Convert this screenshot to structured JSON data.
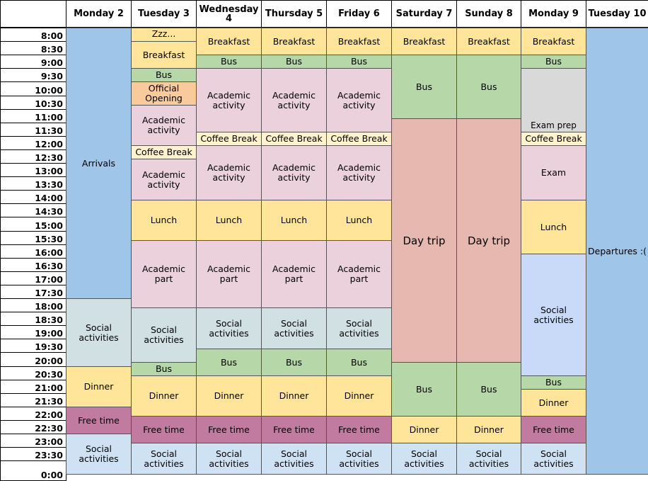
{
  "days": [
    "Monday 2",
    "Tuesday 3",
    "Wednesday 4",
    "Thursday 5",
    "Friday 6",
    "Saturday 7",
    "Sunday 8",
    "Monday 9",
    "Tuesday 10"
  ],
  "times": [
    "8:00",
    "8:30",
    "9:00",
    "9:30",
    "10:00",
    "10:30",
    "11:00",
    "11:30",
    "12:00",
    "12:30",
    "13:00",
    "13:30",
    "14:00",
    "14:30",
    "15:00",
    "15:30",
    "16:00",
    "16:30",
    "17:00",
    "17:30",
    "18:00",
    "18:30",
    "19:00",
    "19:30",
    "20:00",
    "20:30",
    "21:00",
    "21:30",
    "22:00",
    "22:30",
    "23:00",
    "23:30",
    "0:00"
  ],
  "colors": {
    "blue": "#9fc5e8",
    "lightblue": "#cfe2f3",
    "periwinkle": "#c9daf8",
    "yellow": "#ffe599",
    "green": "#b6d7a8",
    "pink": "#ead1dc",
    "orange": "#f9cb9c",
    "salmon": "#e6b8af",
    "grey": "#d9d9d9",
    "plum": "#c27ba0",
    "cream": "#fff2cc",
    "teal": "#d0e0e3"
  },
  "events": [
    {
      "day": 0,
      "start": 0,
      "end": 20,
      "label": "Arrivals",
      "color": "blue"
    },
    {
      "day": 0,
      "start": 20,
      "end": 25,
      "label": "Social activities",
      "color": "teal"
    },
    {
      "day": 0,
      "start": 25,
      "end": 28,
      "label": "Dinner",
      "color": "yellow"
    },
    {
      "day": 0,
      "start": 28,
      "end": 30,
      "label": "Free time",
      "color": "plum"
    },
    {
      "day": 0,
      "start": 30,
      "end": 33,
      "label": "Social activities",
      "color": "lightblue"
    },
    {
      "day": 1,
      "start": 0,
      "end": 1,
      "label": "Zzz...",
      "color": "yellow",
      "pos": "top"
    },
    {
      "day": 1,
      "start": 1,
      "end": 3,
      "label": "Breakfast",
      "color": "yellow"
    },
    {
      "day": 1,
      "start": 3,
      "end": 4,
      "label": "Bus",
      "color": "green"
    },
    {
      "day": 1,
      "start": 4,
      "end": 5.7,
      "label": "Official Opening",
      "color": "orange"
    },
    {
      "day": 1,
      "start": 5.7,
      "end": 8.7,
      "label": "Academic activity",
      "color": "pink"
    },
    {
      "day": 1,
      "start": 8.7,
      "end": 9.7,
      "label": "Coffee Break",
      "color": "cream"
    },
    {
      "day": 1,
      "start": 9.7,
      "end": 12.7,
      "label": "Academic activity",
      "color": "pink"
    },
    {
      "day": 1,
      "start": 12.7,
      "end": 15.7,
      "label": "Lunch",
      "color": "yellow"
    },
    {
      "day": 1,
      "start": 15.7,
      "end": 20.7,
      "label": "Academic part",
      "color": "pink"
    },
    {
      "day": 1,
      "start": 20.7,
      "end": 24.7,
      "label": "Social activities",
      "color": "teal"
    },
    {
      "day": 1,
      "start": 24.7,
      "end": 25.7,
      "label": "Bus",
      "color": "green"
    },
    {
      "day": 1,
      "start": 25.7,
      "end": 28.7,
      "label": "Dinner",
      "color": "yellow"
    },
    {
      "day": 1,
      "start": 28.7,
      "end": 30.7,
      "label": "Free time",
      "color": "plum"
    },
    {
      "day": 1,
      "start": 30.7,
      "end": 33,
      "label": "Social activities",
      "color": "lightblue"
    },
    {
      "day": 2,
      "start": 0,
      "end": 2,
      "label": "Breakfast",
      "color": "yellow"
    },
    {
      "day": 2,
      "start": 2,
      "end": 3,
      "label": "Bus",
      "color": "green"
    },
    {
      "day": 2,
      "start": 3,
      "end": 7.7,
      "label": "Academic activity",
      "color": "pink"
    },
    {
      "day": 2,
      "start": 7.7,
      "end": 8.7,
      "label": "Coffee Break",
      "color": "cream"
    },
    {
      "day": 2,
      "start": 8.7,
      "end": 12.7,
      "label": "Academic activity",
      "color": "pink"
    },
    {
      "day": 2,
      "start": 12.7,
      "end": 15.7,
      "label": "Lunch",
      "color": "yellow"
    },
    {
      "day": 2,
      "start": 15.7,
      "end": 20.7,
      "label": "Academic part",
      "color": "pink"
    },
    {
      "day": 2,
      "start": 20.7,
      "end": 23.7,
      "label": "Social activities",
      "color": "teal"
    },
    {
      "day": 2,
      "start": 23.7,
      "end": 25.7,
      "label": "Bus",
      "color": "green"
    },
    {
      "day": 2,
      "start": 25.7,
      "end": 28.7,
      "label": "Dinner",
      "color": "yellow"
    },
    {
      "day": 2,
      "start": 28.7,
      "end": 30.7,
      "label": "Free time",
      "color": "plum"
    },
    {
      "day": 2,
      "start": 30.7,
      "end": 33,
      "label": "Social activities",
      "color": "lightblue"
    },
    {
      "day": 3,
      "start": 0,
      "end": 2,
      "label": "Breakfast",
      "color": "yellow"
    },
    {
      "day": 3,
      "start": 2,
      "end": 3,
      "label": "Bus",
      "color": "green"
    },
    {
      "day": 3,
      "start": 3,
      "end": 7.7,
      "label": "Academic activity",
      "color": "pink"
    },
    {
      "day": 3,
      "start": 7.7,
      "end": 8.7,
      "label": "Coffee Break",
      "color": "cream"
    },
    {
      "day": 3,
      "start": 8.7,
      "end": 12.7,
      "label": "Academic activity",
      "color": "pink"
    },
    {
      "day": 3,
      "start": 12.7,
      "end": 15.7,
      "label": "Lunch",
      "color": "yellow"
    },
    {
      "day": 3,
      "start": 15.7,
      "end": 20.7,
      "label": "Academic part",
      "color": "pink"
    },
    {
      "day": 3,
      "start": 20.7,
      "end": 23.7,
      "label": "Social activities",
      "color": "teal"
    },
    {
      "day": 3,
      "start": 23.7,
      "end": 25.7,
      "label": "Bus",
      "color": "green"
    },
    {
      "day": 3,
      "start": 25.7,
      "end": 28.7,
      "label": "Dinner",
      "color": "yellow"
    },
    {
      "day": 3,
      "start": 28.7,
      "end": 30.7,
      "label": "Free time",
      "color": "plum"
    },
    {
      "day": 3,
      "start": 30.7,
      "end": 33,
      "label": "Social activities",
      "color": "lightblue"
    },
    {
      "day": 4,
      "start": 0,
      "end": 2,
      "label": "Breakfast",
      "color": "yellow"
    },
    {
      "day": 4,
      "start": 2,
      "end": 3,
      "label": "Bus",
      "color": "green"
    },
    {
      "day": 4,
      "start": 3,
      "end": 7.7,
      "label": "Academic activity",
      "color": "pink"
    },
    {
      "day": 4,
      "start": 7.7,
      "end": 8.7,
      "label": "Coffee Break",
      "color": "cream"
    },
    {
      "day": 4,
      "start": 8.7,
      "end": 12.7,
      "label": "Academic activity",
      "color": "pink"
    },
    {
      "day": 4,
      "start": 12.7,
      "end": 15.7,
      "label": "Lunch",
      "color": "yellow"
    },
    {
      "day": 4,
      "start": 15.7,
      "end": 20.7,
      "label": "Academic part",
      "color": "pink"
    },
    {
      "day": 4,
      "start": 20.7,
      "end": 23.7,
      "label": "Social activities",
      "color": "teal"
    },
    {
      "day": 4,
      "start": 23.7,
      "end": 25.7,
      "label": "Bus",
      "color": "green"
    },
    {
      "day": 4,
      "start": 25.7,
      "end": 28.7,
      "label": "Dinner",
      "color": "yellow"
    },
    {
      "day": 4,
      "start": 28.7,
      "end": 30.7,
      "label": "Free time",
      "color": "plum"
    },
    {
      "day": 4,
      "start": 30.7,
      "end": 33,
      "label": "Social activities",
      "color": "lightblue"
    },
    {
      "day": 5,
      "start": 0,
      "end": 2,
      "label": "Breakfast",
      "color": "yellow"
    },
    {
      "day": 5,
      "start": 2,
      "end": 6.7,
      "label": "Bus",
      "color": "green"
    },
    {
      "day": 5,
      "start": 6.7,
      "end": 24.7,
      "label": "Day trip",
      "color": "salmon",
      "size": "big"
    },
    {
      "day": 5,
      "start": 24.7,
      "end": 28.7,
      "label": "Bus",
      "color": "green"
    },
    {
      "day": 5,
      "start": 28.7,
      "end": 30.7,
      "label": "Dinner",
      "color": "yellow"
    },
    {
      "day": 5,
      "start": 30.7,
      "end": 33,
      "label": "Social activities",
      "color": "lightblue"
    },
    {
      "day": 6,
      "start": 0,
      "end": 2,
      "label": "Breakfast",
      "color": "yellow"
    },
    {
      "day": 6,
      "start": 2,
      "end": 6.7,
      "label": "Bus",
      "color": "green"
    },
    {
      "day": 6,
      "start": 6.7,
      "end": 24.7,
      "label": "Day trip",
      "color": "salmon",
      "size": "big"
    },
    {
      "day": 6,
      "start": 24.7,
      "end": 28.7,
      "label": "Bus",
      "color": "green"
    },
    {
      "day": 6,
      "start": 28.7,
      "end": 30.7,
      "label": "Dinner",
      "color": "yellow"
    },
    {
      "day": 6,
      "start": 30.7,
      "end": 33,
      "label": "Social activities",
      "color": "lightblue"
    },
    {
      "day": 7,
      "start": 0,
      "end": 2,
      "label": "Breakfast",
      "color": "yellow"
    },
    {
      "day": 7,
      "start": 2,
      "end": 3,
      "label": "Bus",
      "color": "green"
    },
    {
      "day": 7,
      "start": 3,
      "end": 7.7,
      "label": "Exam prep",
      "color": "grey",
      "pos": "bottom"
    },
    {
      "day": 7,
      "start": 7.7,
      "end": 8.7,
      "label": "Coffee Break",
      "color": "cream"
    },
    {
      "day": 7,
      "start": 8.7,
      "end": 12.7,
      "label": "Exam",
      "color": "pink"
    },
    {
      "day": 7,
      "start": 12.7,
      "end": 16.7,
      "label": "Lunch",
      "color": "yellow"
    },
    {
      "day": 7,
      "start": 16.7,
      "end": 25.7,
      "label": "Social activities",
      "color": "periwinkle"
    },
    {
      "day": 7,
      "start": 25.7,
      "end": 26.7,
      "label": "Bus",
      "color": "green"
    },
    {
      "day": 7,
      "start": 26.7,
      "end": 28.7,
      "label": "Dinner",
      "color": "yellow"
    },
    {
      "day": 7,
      "start": 28.7,
      "end": 30.7,
      "label": "Free time",
      "color": "plum"
    },
    {
      "day": 7,
      "start": 30.7,
      "end": 33,
      "label": "Social activities",
      "color": "lightblue"
    },
    {
      "day": 8,
      "start": 0,
      "end": 33,
      "label": "Departures :(",
      "color": "blue"
    }
  ]
}
